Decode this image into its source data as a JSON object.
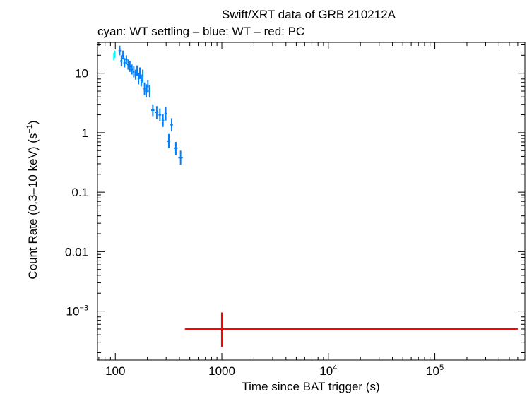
{
  "chart_data": {
    "type": "scatter",
    "title": "Swift/XRT data of GRB 210212A",
    "subtitle": "cyan: WT settling – blue: WT – red: PC",
    "xlabel": "Time since BAT trigger (s)",
    "ylabel_main": "Count Rate (0.3–10 keV) (s",
    "ylabel_sup": "−1",
    "ylabel_close": ")",
    "x_scale": "log",
    "y_scale": "log",
    "xlim": [
      68,
      700000
    ],
    "ylim": [
      0.00015,
      33
    ],
    "grid": false,
    "x_ticks": [
      {
        "value": 100,
        "base": "100",
        "sup": ""
      },
      {
        "value": 1000,
        "base": "1000",
        "sup": ""
      },
      {
        "value": 10000,
        "base": "10",
        "sup": "4"
      },
      {
        "value": 100000,
        "base": "10",
        "sup": "5"
      }
    ],
    "y_ticks": [
      {
        "value": 10,
        "base": "10",
        "sup": ""
      },
      {
        "value": 1,
        "base": "1",
        "sup": ""
      },
      {
        "value": 0.1,
        "base": "0.1",
        "sup": ""
      },
      {
        "value": 0.01,
        "base": "0.01",
        "sup": ""
      },
      {
        "value": 0.001,
        "base": "10",
        "sup": "−3"
      }
    ],
    "series": [
      {
        "color": "#00ffff",
        "points": [
          {
            "x": 97,
            "y": 19,
            "xerr": [
              96,
              98
            ],
            "yerr": [
              16.5,
              22
            ]
          },
          {
            "x": 99,
            "y": 21,
            "xerr": [
              98,
              100
            ],
            "yerr": [
              18,
              24
            ]
          }
        ]
      },
      {
        "color": "#0080ff",
        "points": [
          {
            "x": 110,
            "y": 24,
            "xerr": [
              107,
              113
            ],
            "yerr": [
              20,
              29
            ]
          },
          {
            "x": 114,
            "y": 16,
            "xerr": [
              111,
              117
            ],
            "yerr": [
              13,
              20
            ]
          },
          {
            "x": 118,
            "y": 20,
            "xerr": [
              115,
              121
            ],
            "yerr": [
              17,
              24
            ]
          },
          {
            "x": 122,
            "y": 15,
            "xerr": [
              119,
              125
            ],
            "yerr": [
              12.5,
              18
            ]
          },
          {
            "x": 127,
            "y": 17,
            "xerr": [
              124,
              130
            ],
            "yerr": [
              14,
              20
            ]
          },
          {
            "x": 132,
            "y": 14,
            "xerr": [
              129,
              135
            ],
            "yerr": [
              11.5,
              17
            ]
          },
          {
            "x": 137,
            "y": 13,
            "xerr": [
              134,
              140
            ],
            "yerr": [
              10.5,
              16
            ]
          },
          {
            "x": 143,
            "y": 11.5,
            "xerr": [
              140,
              146
            ],
            "yerr": [
              9.5,
              14
            ]
          },
          {
            "x": 149,
            "y": 10.5,
            "xerr": [
              146,
              152
            ],
            "yerr": [
              8.5,
              13
            ]
          },
          {
            "x": 155,
            "y": 9.5,
            "xerr": [
              152,
              158
            ],
            "yerr": [
              7.8,
              11.5
            ]
          },
          {
            "x": 160,
            "y": 11,
            "xerr": [
              157,
              163
            ],
            "yerr": [
              9,
              13.5
            ]
          },
          {
            "x": 165,
            "y": 8,
            "xerr": [
              162,
              168
            ],
            "yerr": [
              6.5,
              10
            ]
          },
          {
            "x": 170,
            "y": 10,
            "xerr": [
              167,
              173
            ],
            "yerr": [
              8,
              12.5
            ]
          },
          {
            "x": 175,
            "y": 7.5,
            "xerr": [
              172,
              178
            ],
            "yerr": [
              6,
              9.5
            ]
          },
          {
            "x": 181,
            "y": 9,
            "xerr": [
              178,
              184
            ],
            "yerr": [
              7,
              11.5
            ]
          },
          {
            "x": 188,
            "y": 5.5,
            "xerr": [
              184,
              192
            ],
            "yerr": [
              4.3,
              7
            ]
          },
          {
            "x": 195,
            "y": 5,
            "xerr": [
              191,
              199
            ],
            "yerr": [
              3.9,
              6.5
            ]
          },
          {
            "x": 202,
            "y": 6,
            "xerr": [
              198,
              206
            ],
            "yerr": [
              4.7,
              7.6
            ]
          },
          {
            "x": 210,
            "y": 5,
            "xerr": [
              206,
              214
            ],
            "yerr": [
              3.9,
              6.4
            ]
          },
          {
            "x": 225,
            "y": 2.4,
            "xerr": [
              217,
              233
            ],
            "yerr": [
              1.9,
              3
            ]
          },
          {
            "x": 245,
            "y": 2.2,
            "xerr": [
              236,
              254
            ],
            "yerr": [
              1.7,
              2.8
            ]
          },
          {
            "x": 262,
            "y": 2.0,
            "xerr": [
              254,
              270
            ],
            "yerr": [
              1.55,
              2.55
            ]
          },
          {
            "x": 280,
            "y": 1.6,
            "xerr": [
              272,
              288
            ],
            "yerr": [
              1.25,
              2.05
            ]
          },
          {
            "x": 297,
            "y": 2.1,
            "xerr": [
              289,
              305
            ],
            "yerr": [
              1.6,
              2.7
            ]
          },
          {
            "x": 318,
            "y": 0.72,
            "xerr": [
              308,
              328
            ],
            "yerr": [
              0.55,
              0.95
            ]
          },
          {
            "x": 338,
            "y": 1.35,
            "xerr": [
              329,
              347
            ],
            "yerr": [
              1.05,
              1.75
            ]
          },
          {
            "x": 370,
            "y": 0.55,
            "xerr": [
              355,
              385
            ],
            "yerr": [
              0.42,
              0.7
            ]
          },
          {
            "x": 410,
            "y": 0.38,
            "xerr": [
              390,
              430
            ],
            "yerr": [
              0.29,
              0.5
            ]
          }
        ]
      },
      {
        "color": "#ff0000",
        "points": [
          {
            "x": 1000,
            "y": 0.0005,
            "xerr": [
              450,
              600000
            ],
            "yerr": [
              0.00025,
              0.00095
            ]
          }
        ]
      }
    ]
  }
}
